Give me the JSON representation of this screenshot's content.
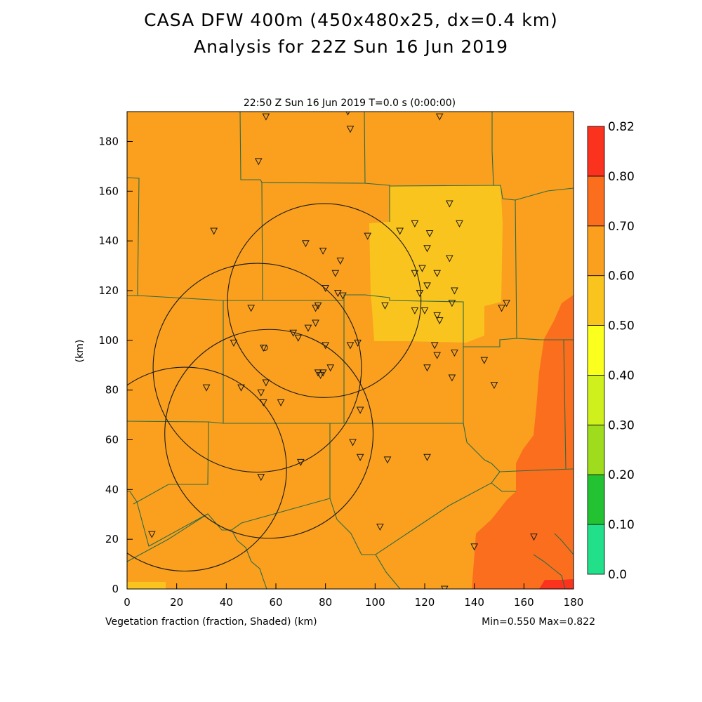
{
  "titles": {
    "line1": "CASA DFW 400m (450x480x25, dx=0.4 km)",
    "line2": "Analysis for 22Z Sun 16 Jun 2019"
  },
  "plot": {
    "subtitle": "22:50 Z Sun 16 Jun 2019    T=0.0 s (0:00:00)",
    "xlabel": "Vegetation fraction (fraction, Shaded)  (km)",
    "ylabel": "(km)",
    "minmax": "Min=0.550 Max=0.822",
    "xlim": [
      0,
      180
    ],
    "ylim": [
      0,
      192
    ],
    "xticks": [
      0,
      20,
      40,
      60,
      80,
      100,
      120,
      140,
      160,
      180
    ],
    "yticks": [
      0,
      20,
      40,
      60,
      80,
      100,
      120,
      140,
      160,
      180
    ]
  },
  "colorbar": {
    "levels": [
      "0.0",
      "0.10",
      "0.20",
      "0.30",
      "0.40",
      "0.50",
      "0.60",
      "0.70",
      "0.80",
      "0.82"
    ],
    "colors": [
      "#22e08a",
      "#22c232",
      "#a0dc1e",
      "#d0f01e",
      "#faff1e",
      "#fac41e",
      "#faa01e",
      "#fa6e1e",
      "#fa321e"
    ]
  },
  "map_colors": {
    "base": "#faa01e",
    "low": "#fac41e",
    "high": "#fa6e1e",
    "max": "#fa321e",
    "county_lines": "#2e6b46",
    "range_rings": "#1a1a1a",
    "stations": "#1a1a1a"
  },
  "range_rings": [
    {
      "name": "ring-northeast",
      "cx": 79.5,
      "cy": 116.0,
      "r": 39.0
    },
    {
      "name": "ring-central",
      "cx": 52.5,
      "cy": 89.0,
      "r": 42.0
    },
    {
      "name": "ring-southeast",
      "cx": 57.2,
      "cy": 62.4,
      "r": 42.0
    },
    {
      "name": "ring-southwest",
      "cx": 23.3,
      "cy": 48.2,
      "r": 41.0
    }
  ],
  "stations": [
    [
      56,
      190
    ],
    [
      89,
      192
    ],
    [
      90,
      185
    ],
    [
      126,
      190
    ],
    [
      53,
      172
    ],
    [
      35,
      144
    ],
    [
      130,
      155
    ],
    [
      134,
      147
    ],
    [
      116,
      147
    ],
    [
      122,
      143
    ],
    [
      110,
      144
    ],
    [
      97,
      142
    ],
    [
      72,
      139
    ],
    [
      79,
      136
    ],
    [
      121,
      137
    ],
    [
      86,
      132
    ],
    [
      130,
      133
    ],
    [
      84,
      127
    ],
    [
      119,
      129
    ],
    [
      116,
      127
    ],
    [
      125,
      127
    ],
    [
      121,
      122
    ],
    [
      80,
      121
    ],
    [
      118,
      119
    ],
    [
      132,
      120
    ],
    [
      85,
      119
    ],
    [
      87,
      118
    ],
    [
      50,
      113
    ],
    [
      77,
      114
    ],
    [
      76,
      113
    ],
    [
      104,
      114
    ],
    [
      131,
      115
    ],
    [
      153,
      115
    ],
    [
      151,
      113
    ],
    [
      116,
      112
    ],
    [
      120,
      112
    ],
    [
      125,
      110
    ],
    [
      126,
      108
    ],
    [
      76,
      107
    ],
    [
      73,
      105
    ],
    [
      67,
      103
    ],
    [
      69,
      101
    ],
    [
      124,
      98
    ],
    [
      125,
      94
    ],
    [
      132,
      95
    ],
    [
      43,
      99
    ],
    [
      55,
      97
    ],
    [
      93,
      99
    ],
    [
      90,
      98
    ],
    [
      80,
      98
    ],
    [
      121,
      89
    ],
    [
      144,
      92
    ],
    [
      82,
      89
    ],
    [
      79,
      87
    ],
    [
      77,
      87
    ],
    [
      78,
      86
    ],
    [
      131,
      85
    ],
    [
      148,
      82
    ],
    [
      56,
      83
    ],
    [
      32,
      81
    ],
    [
      46,
      81
    ],
    [
      54,
      79
    ],
    [
      62,
      75
    ],
    [
      55,
      75
    ],
    [
      94,
      72
    ],
    [
      91,
      59
    ],
    [
      94,
      53
    ],
    [
      70,
      51
    ],
    [
      105,
      52
    ],
    [
      121,
      53
    ],
    [
      54,
      45
    ],
    [
      102,
      25
    ],
    [
      10,
      22
    ],
    [
      164,
      21
    ],
    [
      140,
      17
    ],
    [
      128,
      0
    ]
  ],
  "open_circle": [
    55.5,
    97.0
  ]
}
